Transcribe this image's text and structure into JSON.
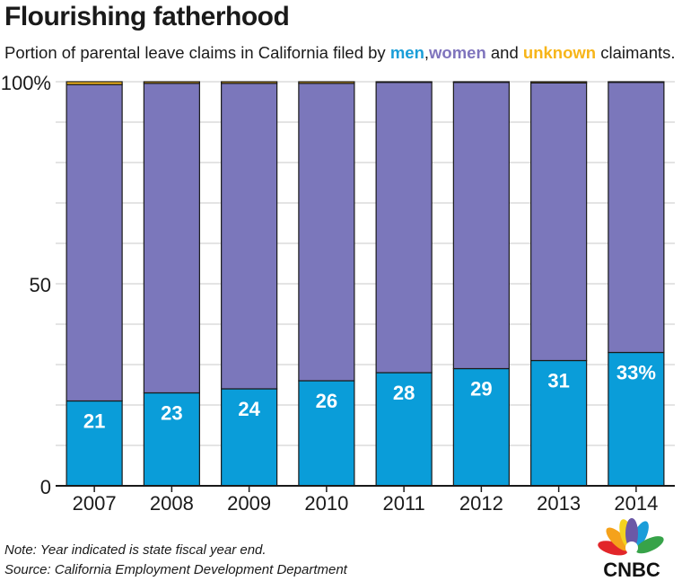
{
  "title": "Flourishing fatherhood",
  "subtitle": {
    "prefix": "Portion of parental leave claims in California filed by ",
    "men": "men",
    "sep": ",",
    "women": "women",
    "and": " and ",
    "unknown": "unknown",
    "suffix": " claimants."
  },
  "notes": {
    "note": "Note: Year indicated is state fiscal year end.",
    "source": "Source: California Employment Development Department"
  },
  "logo": {
    "text": "CNBC",
    "icon": "cnbc-peacock-icon"
  },
  "colors": {
    "men": "#0a9dd9",
    "women": "#7b77bb",
    "unknown": "#f3b51b",
    "grid": "#c8c8c8",
    "outline": "#1a1a1a"
  },
  "chart_data": {
    "type": "bar",
    "stacked": true,
    "categories": [
      "2007",
      "2008",
      "2009",
      "2010",
      "2011",
      "2012",
      "2013",
      "2014"
    ],
    "series": [
      {
        "name": "men",
        "values": [
          21,
          23,
          24,
          26,
          28,
          29,
          31,
          33
        ]
      },
      {
        "name": "women",
        "values": [
          78.3,
          76.6,
          75.6,
          73.6,
          71.9,
          70.9,
          68.7,
          66.9
        ]
      },
      {
        "name": "unknown",
        "values": [
          0.7,
          0.4,
          0.4,
          0.4,
          0.1,
          0.1,
          0.3,
          0.1
        ]
      }
    ],
    "data_labels": [
      "21",
      "23",
      "24",
      "26",
      "28",
      "29",
      "31",
      "33%"
    ],
    "y_ticks": [
      "0",
      "50",
      "100%"
    ],
    "y_tick_values": [
      0,
      50,
      100
    ],
    "ylim": [
      0,
      100
    ],
    "grid": true,
    "legend": "in subtitle"
  }
}
